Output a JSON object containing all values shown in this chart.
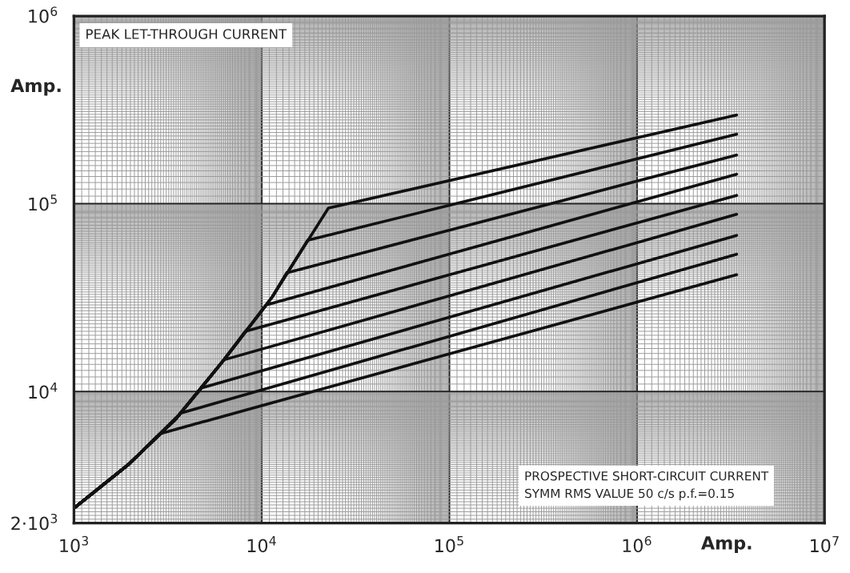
{
  "chart_data": {
    "type": "line",
    "title": "PEAK LET-THROUGH CURRENT",
    "ylabel": "Amp.",
    "xlabel": "Amp.",
    "annotations": [
      "PROSPECTIVE SHORT-CIRCUIT CURRENT\nSYMM RMS VALUE 50 c/s p.f.=0.15"
    ],
    "log": "xy",
    "grid": true,
    "legend": false,
    "marker": "none",
    "line_style": "solid",
    "xlim": [
      1000,
      10000000
    ],
    "ylim": [
      2000,
      1000000
    ],
    "xticks": [
      {
        "value": 1000,
        "label": "10$^{3}$"
      },
      {
        "value": 10000,
        "label": "10$^{4}$"
      },
      {
        "value": 100000,
        "label": "10$^{5}$"
      },
      {
        "value": 1000000,
        "label": "10$^{6}$"
      },
      {
        "value": 10000000,
        "label": "10$^{7}$"
      }
    ],
    "yticks": [
      {
        "value": 2000,
        "label": "2·10$^{3}$"
      },
      {
        "value": 10000,
        "label": "10$^{4}$"
      },
      {
        "value": 100000,
        "label": "10$^{5}$"
      },
      {
        "value": 1000000,
        "label": "10$^{6}$"
      }
    ],
    "series": [
      {
        "color": "#111111",
        "x": [
          1000,
          1950,
          3500,
          6300,
          11400,
          22700,
          3400000
        ],
        "values": [
          2400,
          4100,
          7200,
          14800,
          32000,
          95000,
          297000
        ]
      },
      {
        "color": "#111111",
        "x": [
          1000,
          1950,
          3500,
          6300,
          11400,
          17600,
          3400000
        ],
        "values": [
          2400,
          4100,
          7200,
          14800,
          32000,
          64000,
          235000
        ]
      },
      {
        "color": "#111111",
        "x": [
          1000,
          1950,
          3500,
          6300,
          11400,
          13600,
          3400000
        ],
        "values": [
          2400,
          4100,
          7200,
          14800,
          32000,
          43000,
          182000
        ]
      },
      {
        "color": "#111111",
        "x": [
          1000,
          1950,
          3500,
          6300,
          10600,
          3400000
        ],
        "values": [
          2400,
          4100,
          7200,
          14800,
          29000,
          144000
        ]
      },
      {
        "color": "#111111",
        "x": [
          1000,
          1950,
          3500,
          6300,
          8200,
          3400000
        ],
        "values": [
          2400,
          4100,
          7200,
          14800,
          21000,
          111000
        ]
      },
      {
        "color": "#111111",
        "x": [
          1000,
          1950,
          3500,
          6300,
          3400000
        ],
        "values": [
          2400,
          4100,
          7200,
          14800,
          88000
        ]
      },
      {
        "color": "#111111",
        "x": [
          1000,
          1950,
          3500,
          4800,
          3400000
        ],
        "values": [
          2400,
          4100,
          7200,
          10500,
          68000
        ]
      },
      {
        "color": "#111111",
        "x": [
          1000,
          1950,
          3700,
          3400000
        ],
        "values": [
          2400,
          4100,
          7700,
          54000
        ]
      },
      {
        "color": "#111111",
        "x": [
          1000,
          1950,
          2900,
          3400000
        ],
        "values": [
          2400,
          4100,
          6000,
          42000
        ]
      }
    ]
  }
}
